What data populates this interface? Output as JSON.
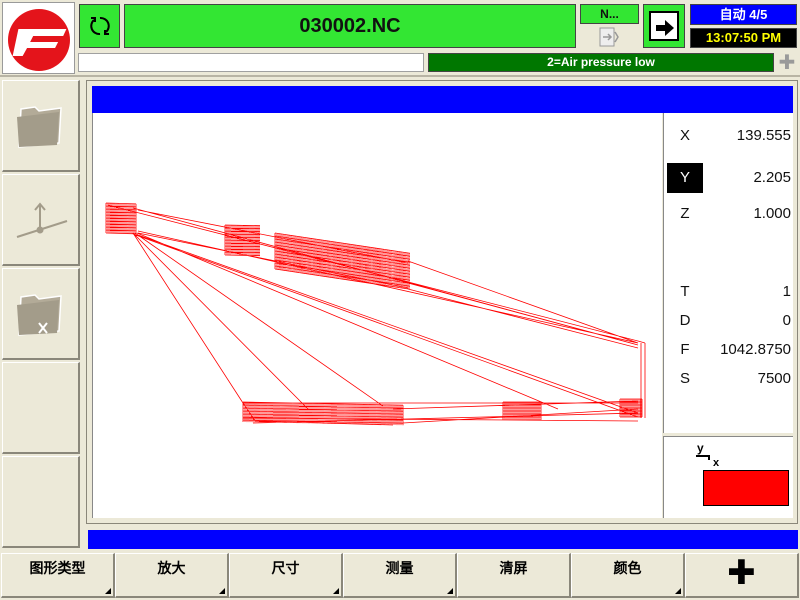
{
  "header": {
    "program_name": "030002.NC",
    "n_indicator": "N...",
    "mode": "自动 4/5",
    "clock": "13:07:50 PM",
    "input_line": "",
    "alarm": "2=Air pressure low",
    "alarm_more": "✚"
  },
  "coordinates": {
    "X": "139.555",
    "Y": "2.205",
    "Z": "1.000",
    "T": "1",
    "D": "0",
    "F": "1042.8750",
    "S": "7500",
    "selected_axis": "Y"
  },
  "axis_indicator": {
    "y": "y",
    "x": "x",
    "color": "#ff0000"
  },
  "softkeys": [
    "图形类型",
    "放大",
    "尺寸",
    "测量",
    "清屏",
    "颜色",
    "✚"
  ],
  "side_tools": [
    "folder-icon",
    "axis-point-icon",
    "folder-delete-icon",
    "",
    ""
  ],
  "colors": {
    "header_green": "#33e633",
    "title_blue": "#0000ff",
    "toolpath_red": "#ff0000",
    "alarm_green": "#007700"
  }
}
